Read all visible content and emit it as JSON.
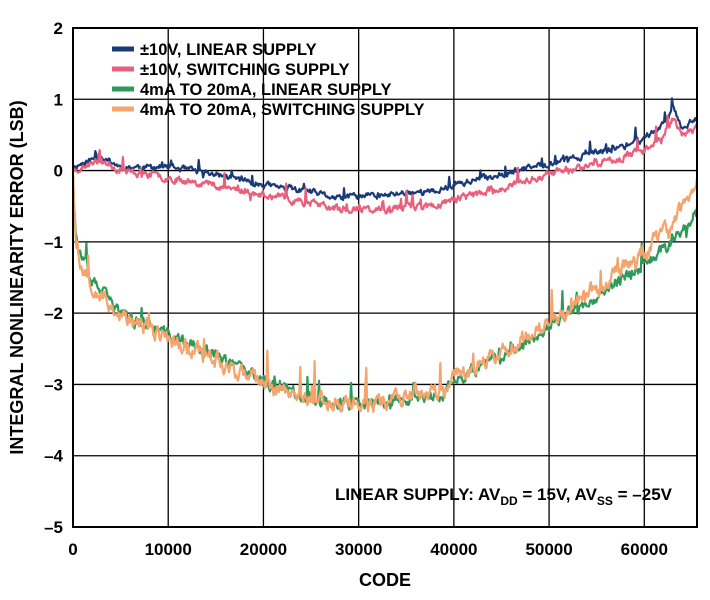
{
  "chart_data": {
    "type": "line",
    "title": "",
    "xlabel": "CODE",
    "ylabel": "INTEGRAL NONLINEARITY ERROR (LSB)",
    "xlim": [
      0,
      65535
    ],
    "ylim": [
      -5,
      2
    ],
    "xticks": [
      0,
      10000,
      20000,
      30000,
      40000,
      50000,
      60000
    ],
    "xtick_labels": [
      "0",
      "10000",
      "20000",
      "30000",
      "40000",
      "50000",
      "60000"
    ],
    "yticks": [
      2,
      1,
      0,
      -1,
      -2,
      -3,
      -4,
      -5
    ],
    "ytick_labels": [
      "2",
      "1",
      "0",
      "–1",
      "–2",
      "–3",
      "–4",
      "–5"
    ],
    "grid": true,
    "legend_position": "top-left",
    "annotation": {
      "prefix": "LINEAR SUPPLY: AV",
      "sub1": "DD",
      "mid": " = 15V, AV",
      "sub2": "SS",
      "suffix": " = –25V"
    },
    "series": [
      {
        "name": "±10V, LINEAR SUPPLY",
        "color": "#1b3a7a",
        "noise": 0.05,
        "seed": 11,
        "x": [
          0,
          2000,
          3000,
          5000,
          10000,
          15000,
          20000,
          25000,
          28000,
          30000,
          33000,
          35000,
          38000,
          40000,
          45000,
          50000,
          55000,
          58000,
          60000,
          62000,
          63000,
          64000,
          65535
        ],
        "y": [
          0.05,
          0.15,
          0.2,
          0.05,
          0.05,
          -0.05,
          -0.2,
          -0.3,
          -0.4,
          -0.35,
          -0.35,
          -0.3,
          -0.3,
          -0.2,
          -0.05,
          0.1,
          0.25,
          0.35,
          0.45,
          0.65,
          0.9,
          0.6,
          0.75
        ]
      },
      {
        "name": "±10V, SWITCHING SUPPLY",
        "color": "#e8607c",
        "noise": 0.06,
        "seed": 23,
        "x": [
          0,
          2000,
          3000,
          5000,
          10000,
          15000,
          20000,
          25000,
          28000,
          30000,
          33000,
          35000,
          38000,
          40000,
          45000,
          50000,
          55000,
          58000,
          60000,
          62000,
          63000,
          64000,
          65535
        ],
        "y": [
          0.0,
          0.1,
          0.15,
          0.0,
          -0.1,
          -0.2,
          -0.35,
          -0.45,
          -0.55,
          -0.55,
          -0.55,
          -0.5,
          -0.5,
          -0.4,
          -0.25,
          -0.05,
          0.1,
          0.2,
          0.3,
          0.5,
          0.75,
          0.5,
          0.6
        ]
      },
      {
        "name": "4mA TO 20mA, LINEAR SUPPLY",
        "color": "#2e9a5a",
        "noise": 0.1,
        "seed": 37,
        "x": [
          0,
          300,
          800,
          2000,
          5000,
          10000,
          15000,
          20000,
          25000,
          30000,
          35000,
          39000,
          40000,
          45000,
          50000,
          55000,
          60000,
          63000,
          65535
        ],
        "y": [
          0.0,
          -0.9,
          -1.2,
          -1.55,
          -2.0,
          -2.3,
          -2.6,
          -2.95,
          -3.2,
          -3.3,
          -3.2,
          -3.15,
          -2.95,
          -2.6,
          -2.2,
          -1.75,
          -1.3,
          -1.0,
          -0.55
        ]
      },
      {
        "name": "4mA TO 20mA, SWITCHING SUPPLY",
        "color": "#f4a46c",
        "noise": 0.14,
        "seed": 53,
        "x": [
          0,
          300,
          800,
          2000,
          5000,
          10000,
          15000,
          20000,
          25000,
          30000,
          35000,
          39000,
          40000,
          45000,
          50000,
          55000,
          60000,
          63000,
          65535
        ],
        "y": [
          0.0,
          -1.0,
          -1.3,
          -1.6,
          -2.05,
          -2.35,
          -2.65,
          -3.0,
          -3.2,
          -3.3,
          -3.15,
          -3.1,
          -2.9,
          -2.55,
          -2.15,
          -1.65,
          -1.15,
          -0.75,
          -0.15
        ]
      }
    ]
  }
}
